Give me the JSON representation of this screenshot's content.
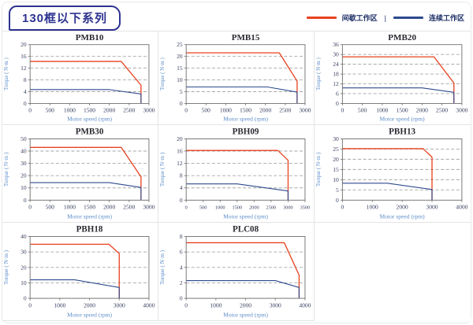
{
  "header": {
    "title": "130框以下系列",
    "legend": [
      {
        "label": "间歇工作区",
        "color": "#e8421f"
      },
      {
        "label": "连续工作区",
        "color": "#2e4a8f"
      }
    ],
    "legend_separator": "|"
  },
  "colors": {
    "intermittent_line": "#e8421f",
    "continuous_line": "#2e4a8f",
    "axis_label_blue": "#5b8cc8",
    "tick_text": "#3a4160",
    "grid_dash": "#a6a6a6",
    "plot_border": "#6e6e6e",
    "chart_title": "#2a2a32",
    "accent_navy": "#2d3390"
  },
  "chart_data": [
    {
      "type": "line",
      "title": "PMB10",
      "xlabel": "Motor speed (rpm)",
      "ylabel": "Torque ( N·m )",
      "xlim": [
        0,
        3000
      ],
      "ylim": [
        0,
        20
      ],
      "xticks": [
        0,
        500,
        1000,
        1500,
        2000,
        2500,
        3000
      ],
      "yticks": [
        0,
        4,
        8,
        12,
        16,
        20
      ],
      "series": [
        {
          "name": "间歇工作区",
          "color": "#e8421f",
          "points": [
            [
              0,
              14.3
            ],
            [
              2300,
              14.3
            ],
            [
              2800,
              6.2
            ],
            [
              2800,
              0
            ]
          ]
        },
        {
          "name": "连续工作区",
          "color": "#2e4a8f",
          "points": [
            [
              0,
              4.7
            ],
            [
              2000,
              4.7
            ],
            [
              2800,
              3.2
            ],
            [
              2800,
              0
            ]
          ]
        }
      ]
    },
    {
      "type": "line",
      "title": "PMB15",
      "xlabel": "Motor speed (rpm)",
      "ylabel": "Torque ( N·m )",
      "xlim": [
        0,
        3000
      ],
      "ylim": [
        0,
        25
      ],
      "xticks": [
        0,
        500,
        1000,
        1500,
        2000,
        2500,
        3000
      ],
      "yticks": [
        0,
        5,
        10,
        15,
        20,
        25
      ],
      "series": [
        {
          "name": "间歇工作区",
          "color": "#e8421f",
          "points": [
            [
              0,
              21.5
            ],
            [
              2350,
              21.5
            ],
            [
              2800,
              9.5
            ],
            [
              2800,
              0
            ]
          ]
        },
        {
          "name": "连续工作区",
          "color": "#2e4a8f",
          "points": [
            [
              0,
              7
            ],
            [
              2050,
              7
            ],
            [
              2800,
              4.8
            ],
            [
              2800,
              0
            ]
          ]
        }
      ]
    },
    {
      "type": "line",
      "title": "PMB20",
      "xlabel": "Motor speed (rpm)",
      "ylabel": "Torque ( N·m )",
      "xlim": [
        0,
        3000
      ],
      "ylim": [
        0,
        36
      ],
      "xticks": [
        0,
        500,
        1000,
        1500,
        2000,
        2500,
        3000
      ],
      "yticks": [
        0,
        6,
        12,
        18,
        24,
        30,
        36
      ],
      "series": [
        {
          "name": "间歇工作区",
          "color": "#e8421f",
          "points": [
            [
              0,
              28.5
            ],
            [
              2300,
              28.5
            ],
            [
              2800,
              12.5
            ],
            [
              2800,
              0
            ]
          ]
        },
        {
          "name": "连续工作区",
          "color": "#2e4a8f",
          "points": [
            [
              0,
              9.5
            ],
            [
              2000,
              9.5
            ],
            [
              2800,
              6.8
            ],
            [
              2800,
              0
            ]
          ]
        }
      ]
    },
    {
      "type": "line",
      "title": "PMB30",
      "xlabel": "Motor speed (rpm)",
      "ylabel": "Torque ( N·m )",
      "xlim": [
        0,
        3000
      ],
      "ylim": [
        0,
        50
      ],
      "xticks": [
        0,
        500,
        1000,
        1500,
        2000,
        2500,
        3000
      ],
      "yticks": [
        0,
        10,
        20,
        30,
        40,
        50
      ],
      "series": [
        {
          "name": "间歇工作区",
          "color": "#e8421f",
          "points": [
            [
              0,
              43
            ],
            [
              2300,
              43
            ],
            [
              2800,
              19
            ],
            [
              2800,
              0
            ]
          ]
        },
        {
          "name": "连续工作区",
          "color": "#2e4a8f",
          "points": [
            [
              0,
              14.3
            ],
            [
              2000,
              14.3
            ],
            [
              2800,
              10.3
            ],
            [
              2800,
              0
            ]
          ]
        }
      ]
    },
    {
      "type": "line",
      "title": "PBH09",
      "xlabel": "Motor speed (rpm)",
      "ylabel": "Torque ( N·m )",
      "xlim": [
        0,
        3500
      ],
      "ylim": [
        0,
        20
      ],
      "xticks": [
        0,
        500,
        1000,
        1500,
        2000,
        2500,
        3000,
        3500
      ],
      "yticks": [
        0,
        4,
        8,
        12,
        16,
        20
      ],
      "series": [
        {
          "name": "间歇工作区",
          "color": "#e8421f",
          "points": [
            [
              0,
              16.2
            ],
            [
              2700,
              16.2
            ],
            [
              3000,
              13
            ],
            [
              3000,
              0
            ]
          ]
        },
        {
          "name": "连续工作区",
          "color": "#2e4a8f",
          "points": [
            [
              0,
              5.3
            ],
            [
              1500,
              5.3
            ],
            [
              3000,
              3
            ],
            [
              3000,
              0
            ]
          ]
        }
      ]
    },
    {
      "type": "line",
      "title": "PBH13",
      "xlabel": "Motor speed (rpm)",
      "ylabel": "Torque ( N·m )",
      "xlim": [
        0,
        4000
      ],
      "ylim": [
        0,
        30
      ],
      "xticks": [
        0,
        1000,
        2000,
        3000,
        4000
      ],
      "yticks": [
        0,
        5,
        10,
        15,
        20,
        25,
        30
      ],
      "series": [
        {
          "name": "间歇工作区",
          "color": "#e8421f",
          "points": [
            [
              0,
              25.2
            ],
            [
              2700,
              25.2
            ],
            [
              3000,
              21
            ],
            [
              3000,
              0
            ]
          ]
        },
        {
          "name": "连续工作区",
          "color": "#2e4a8f",
          "points": [
            [
              0,
              8.3
            ],
            [
              1500,
              8.3
            ],
            [
              3000,
              5.2
            ],
            [
              3000,
              0
            ]
          ]
        }
      ]
    },
    {
      "type": "line",
      "title": "PBH18",
      "xlabel": "Motor speed (rpm)",
      "ylabel": "Torque ( N·m )",
      "xlim": [
        0,
        4000
      ],
      "ylim": [
        0,
        40
      ],
      "xticks": [
        0,
        1000,
        2000,
        3000,
        4000
      ],
      "yticks": [
        0,
        10,
        20,
        30,
        40
      ],
      "series": [
        {
          "name": "间歇工作区",
          "color": "#e8421f",
          "points": [
            [
              0,
              35
            ],
            [
              2650,
              35
            ],
            [
              3000,
              29
            ],
            [
              3000,
              0
            ]
          ]
        },
        {
          "name": "连续工作区",
          "color": "#2e4a8f",
          "points": [
            [
              0,
              12
            ],
            [
              1500,
              12
            ],
            [
              3000,
              7
            ],
            [
              3000,
              0
            ]
          ]
        }
      ]
    },
    {
      "type": "line",
      "title": "PLC08",
      "xlabel": "Motor speed (rpm)",
      "ylabel": "Torque ( N·m )",
      "xlim": [
        0,
        4000
      ],
      "ylim": [
        0,
        8
      ],
      "xticks": [
        0,
        1000,
        2000,
        3000,
        4000
      ],
      "yticks": [
        0,
        2,
        4,
        6,
        8
      ],
      "series": [
        {
          "name": "间歇工作区",
          "color": "#e8421f",
          "points": [
            [
              0,
              7.2
            ],
            [
              3300,
              7.2
            ],
            [
              3800,
              3
            ],
            [
              3800,
              0
            ]
          ]
        },
        {
          "name": "连续工作区",
          "color": "#2e4a8f",
          "points": [
            [
              0,
              2.3
            ],
            [
              3000,
              2.3
            ],
            [
              3800,
              1.4
            ],
            [
              3800,
              0
            ]
          ]
        }
      ]
    }
  ]
}
